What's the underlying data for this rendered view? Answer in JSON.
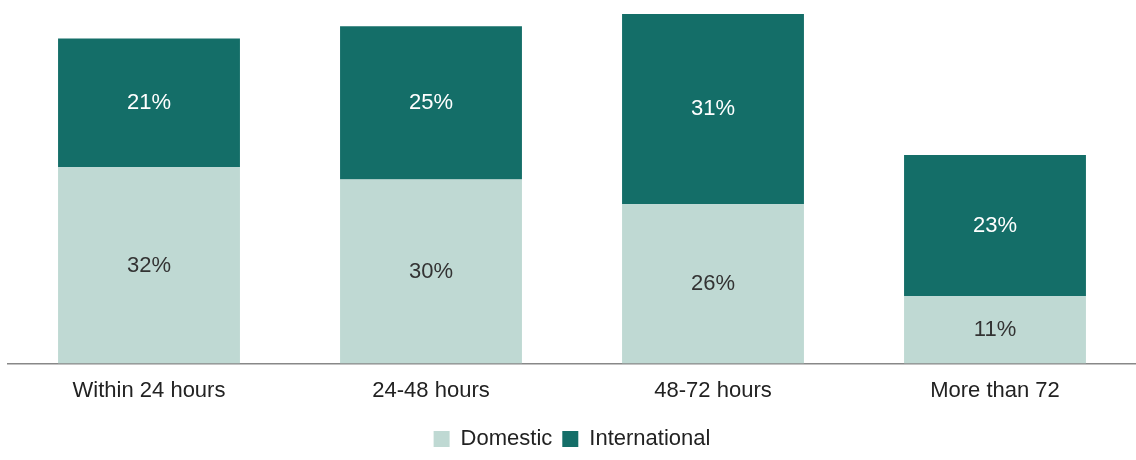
{
  "chart_data": {
    "type": "bar",
    "stacked": true,
    "categories": [
      "Within 24 hours",
      "24-48 hours",
      "48-72 hours",
      "More than 72"
    ],
    "series": [
      {
        "name": "Domestic",
        "color": "#bfd9d3",
        "values": [
          32,
          30,
          26,
          11
        ],
        "value_labels": [
          "32%",
          "30%",
          "26%",
          "11%"
        ]
      },
      {
        "name": "International",
        "color": "#146e68",
        "values": [
          21,
          25,
          31,
          23
        ],
        "value_labels": [
          "21%",
          "25%",
          "31%",
          "23%"
        ]
      }
    ],
    "tick_labels": "x",
    "legend": "bottom",
    "grid": false
  }
}
